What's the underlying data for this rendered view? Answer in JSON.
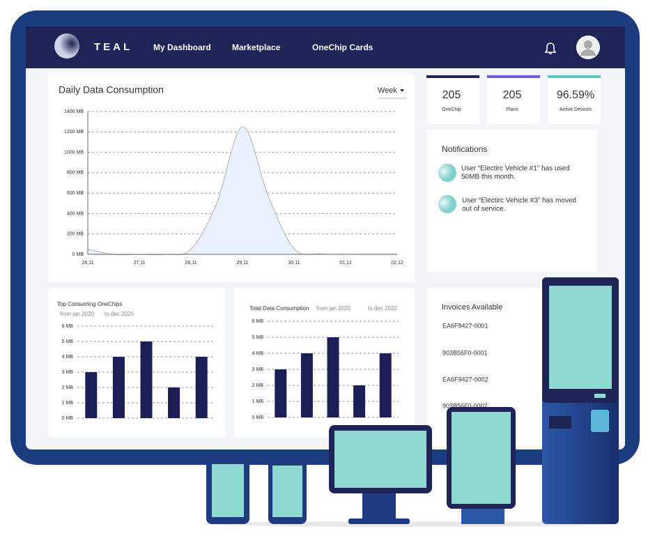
{
  "nav": {
    "brand": "TEAL",
    "links": [
      "My Dashboard",
      "Marketplace",
      "OneChip Cards"
    ]
  },
  "daily": {
    "selector": "Week",
    "chart_data": {
      "type": "area",
      "title": "Daily Data Consumption",
      "categories": [
        "26,11",
        null,
        "27,11",
        null,
        "28,11",
        null,
        "29,11",
        null,
        "30,11",
        null,
        "01,12",
        null,
        "02,12"
      ],
      "values": [
        50,
        0,
        0,
        0,
        50,
        500,
        1250,
        570,
        55,
        5,
        0,
        0,
        0
      ],
      "color": "#e9f1fd",
      "line_color": "#b9bcc4",
      "ylim": [
        0,
        1400
      ],
      "yticks": [
        {
          "value": 0,
          "label": "0 MB"
        },
        {
          "value": 200,
          "label": "200 MB"
        },
        {
          "value": 400,
          "label": "400 MB"
        },
        {
          "value": 600,
          "label": "600 MB"
        },
        {
          "value": 800,
          "label": "800 MB"
        },
        {
          "value": 1000,
          "label": "1000 MB"
        },
        {
          "value": 1200,
          "label": "1200 MB"
        },
        {
          "value": 1400,
          "label": "1400 MB"
        }
      ],
      "grid": true
    }
  },
  "stats": [
    {
      "value": "205",
      "label": "OneChip"
    },
    {
      "value": "205",
      "label": "Plans"
    },
    {
      "value": "96.59%",
      "label": "Active Devices"
    }
  ],
  "notifications": {
    "title": "Notifications",
    "items": [
      [
        "User “Electirc Vehicle #1” has used",
        "50MB this month."
      ],
      [
        "User “Electirc Vehicle #3” has moved",
        "out of service."
      ]
    ]
  },
  "top_consuming": {
    "from": "from jan 2020",
    "to": "to dec 2020",
    "chart_data": {
      "type": "bar",
      "title": "Top Consuming OneChips",
      "values": [
        3,
        4,
        5,
        2,
        4
      ],
      "color": "#1b1f55",
      "ylim": [
        0,
        6
      ],
      "yticks": [
        {
          "value": 0,
          "label": "0 MB"
        },
        {
          "value": 1,
          "label": "1 MB"
        },
        {
          "value": 2,
          "label": "2 MB"
        },
        {
          "value": 3,
          "label": "3 MB"
        },
        {
          "value": 4,
          "label": "4 MB"
        },
        {
          "value": 5,
          "label": "5 MB"
        },
        {
          "value": 6,
          "label": "6 MB"
        }
      ],
      "grid": true
    }
  },
  "total_consumption": {
    "from": "from jan 2020",
    "to": "to dec 2020",
    "chart_data": {
      "type": "bar",
      "title": "Total Data Consumption",
      "values": [
        3,
        4,
        5,
        2,
        4
      ],
      "color": "#1b1f55",
      "ylim": [
        0,
        6
      ],
      "yticks": [
        {
          "value": 0,
          "label": "0 MB"
        },
        {
          "value": 1,
          "label": "1 MB"
        },
        {
          "value": 2,
          "label": "2 MB"
        },
        {
          "value": 3,
          "label": "3 MB"
        },
        {
          "value": 4,
          "label": "4 MB"
        },
        {
          "value": 5,
          "label": "5 MB"
        },
        {
          "value": 6,
          "label": "6 MB"
        }
      ],
      "grid": true
    }
  },
  "invoices": {
    "title": "Invoices Available",
    "items": [
      "EA6F9427-0001",
      "903B56F0-0001",
      "EA6F9427-0002",
      "903B56F0-0002"
    ]
  }
}
